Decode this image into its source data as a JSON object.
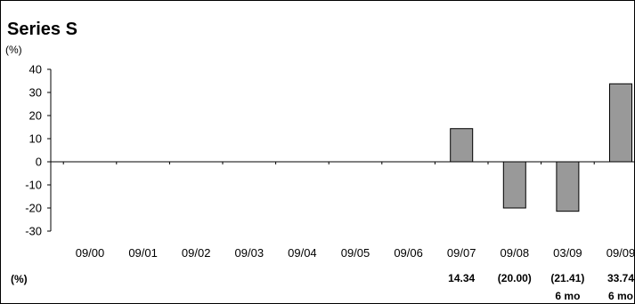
{
  "chart_data": {
    "type": "bar",
    "title": "Series S",
    "unit_label_top": "(%)",
    "unit_label_bottom": "(%)",
    "categories": [
      "09/00",
      "09/01",
      "09/02",
      "09/03",
      "09/04",
      "09/05",
      "09/06",
      "09/07",
      "09/08",
      "03/09",
      "09/09"
    ],
    "values": [
      null,
      null,
      null,
      null,
      null,
      null,
      null,
      14.34,
      -20.0,
      -21.41,
      33.74
    ],
    "value_labels": [
      "",
      "",
      "",
      "",
      "",
      "",
      "",
      "14.34",
      "(20.00)",
      "(21.41)",
      "33.74"
    ],
    "period_labels": [
      "",
      "",
      "",
      "",
      "",
      "",
      "",
      "",
      "",
      "6 mo",
      "6 mo"
    ],
    "ylim": [
      -30,
      40
    ],
    "yticks": [
      40,
      30,
      20,
      10,
      0,
      -10,
      -20,
      -30
    ],
    "bar_color": "#999999",
    "grid": false,
    "legend": "none"
  }
}
